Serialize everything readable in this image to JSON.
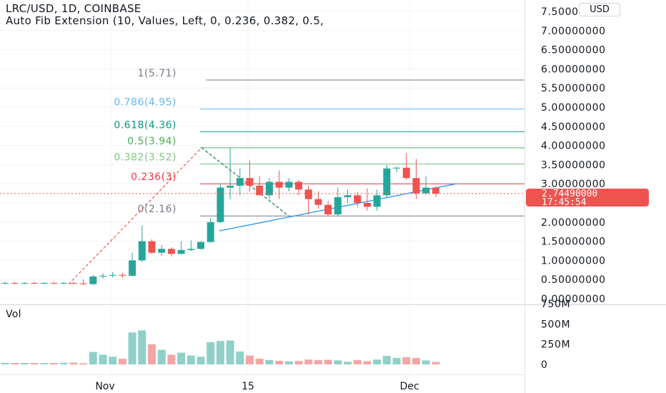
{
  "header": {
    "symbol_line": "LRC/USD, 1D, COINBASE",
    "indicator_line": "Auto Fib Extension (10, Values, Left, 0, 0.236, 0.382, 0.5,"
  },
  "currency_button": "USD",
  "price_axis": {
    "labels": [
      "7.50000000",
      "7.00000000",
      "6.50000000",
      "6.00000000",
      "5.50000000",
      "5.00000000",
      "4.50000000",
      "4.00000000",
      "3.50000000",
      "3.00000000",
      "2.50000000",
      "2.00000000",
      "1.50000000",
      "1.00000000",
      "0.50000000",
      "0.00000000"
    ],
    "values": [
      7.5,
      7.0,
      6.5,
      6.0,
      5.5,
      5.0,
      4.5,
      4.0,
      3.5,
      3.0,
      2.5,
      2.0,
      1.5,
      1.0,
      0.5,
      0.0
    ]
  },
  "current_price": {
    "value": "2.74490000",
    "countdown": "17:45:54",
    "color": "#ef5350"
  },
  "fib_levels": [
    {
      "label": "1(5.71)",
      "value": 5.71,
      "color": "#787b86"
    },
    {
      "label": "0.786(4.95)",
      "value": 4.95,
      "color": "#64b5f6"
    },
    {
      "label": "0.618(4.36)",
      "value": 4.36,
      "color": "#089981"
    },
    {
      "label": "0.5(3.94)",
      "value": 3.94,
      "color": "#4caf50"
    },
    {
      "label": "0.382(3.52)",
      "value": 3.52,
      "color": "#81c784"
    },
    {
      "label": "0.236(3)",
      "value": 3.0,
      "color": "#f23645"
    },
    {
      "label": "0(2.16)",
      "value": 2.16,
      "color": "#787b86"
    }
  ],
  "volume_pane": {
    "title": "Vol",
    "axis_labels": [
      "750M",
      "500M",
      "250M",
      "0"
    ],
    "axis_values": [
      750,
      500,
      250,
      0
    ]
  },
  "time_axis": {
    "labels": [
      "Nov",
      "15",
      "Dec"
    ]
  },
  "colors": {
    "up": "#26a69a",
    "down": "#ef5350",
    "up_vol": "#8fd1c9",
    "down_vol": "#f4a6a6",
    "trendline": "#2196f3"
  },
  "chart_data": {
    "type": "candlestick",
    "candles": [
      {
        "o": 0.4,
        "h": 0.44,
        "l": 0.38,
        "c": 0.41,
        "v": 20
      },
      {
        "o": 0.41,
        "h": 0.44,
        "l": 0.38,
        "c": 0.4,
        "v": 18
      },
      {
        "o": 0.4,
        "h": 0.43,
        "l": 0.38,
        "c": 0.41,
        "v": 17
      },
      {
        "o": 0.41,
        "h": 0.44,
        "l": 0.38,
        "c": 0.4,
        "v": 18
      },
      {
        "o": 0.4,
        "h": 0.43,
        "l": 0.38,
        "c": 0.41,
        "v": 16
      },
      {
        "o": 0.41,
        "h": 0.44,
        "l": 0.39,
        "c": 0.4,
        "v": 18
      },
      {
        "o": 0.4,
        "h": 0.43,
        "l": 0.38,
        "c": 0.41,
        "v": 20
      },
      {
        "o": 0.41,
        "h": 0.44,
        "l": 0.38,
        "c": 0.4,
        "v": 22
      },
      {
        "o": 0.4,
        "h": 0.5,
        "l": 0.36,
        "c": 0.38,
        "v": 15
      },
      {
        "o": 0.38,
        "h": 0.62,
        "l": 0.36,
        "c": 0.58,
        "v": 155
      },
      {
        "o": 0.58,
        "h": 0.66,
        "l": 0.52,
        "c": 0.6,
        "v": 120
      },
      {
        "o": 0.6,
        "h": 0.7,
        "l": 0.56,
        "c": 0.62,
        "v": 95
      },
      {
        "o": 0.62,
        "h": 0.68,
        "l": 0.55,
        "c": 0.6,
        "v": 70
      },
      {
        "o": 0.6,
        "h": 1.2,
        "l": 0.58,
        "c": 1.0,
        "v": 395
      },
      {
        "o": 1.0,
        "h": 1.92,
        "l": 0.96,
        "c": 1.5,
        "v": 420
      },
      {
        "o": 1.5,
        "h": 1.55,
        "l": 1.17,
        "c": 1.2,
        "v": 250
      },
      {
        "o": 1.2,
        "h": 1.4,
        "l": 1.12,
        "c": 1.3,
        "v": 180
      },
      {
        "o": 1.3,
        "h": 1.34,
        "l": 1.1,
        "c": 1.17,
        "v": 120
      },
      {
        "o": 1.17,
        "h": 1.5,
        "l": 1.15,
        "c": 1.27,
        "v": 145
      },
      {
        "o": 1.27,
        "h": 1.52,
        "l": 1.24,
        "c": 1.3,
        "v": 110
      },
      {
        "o": 1.3,
        "h": 1.5,
        "l": 1.28,
        "c": 1.48,
        "v": 95
      },
      {
        "o": 1.48,
        "h": 2.1,
        "l": 1.46,
        "c": 2.0,
        "v": 275
      },
      {
        "o": 2.0,
        "h": 3.0,
        "l": 1.98,
        "c": 2.9,
        "v": 290
      },
      {
        "o": 2.9,
        "h": 3.94,
        "l": 2.6,
        "c": 2.95,
        "v": 295
      },
      {
        "o": 2.95,
        "h": 3.4,
        "l": 2.7,
        "c": 3.15,
        "v": 160
      },
      {
        "o": 3.15,
        "h": 3.6,
        "l": 2.8,
        "c": 2.95,
        "v": 110
      },
      {
        "o": 2.95,
        "h": 3.2,
        "l": 2.72,
        "c": 2.7,
        "v": 70
      },
      {
        "o": 2.7,
        "h": 3.15,
        "l": 2.6,
        "c": 3.05,
        "v": 55
      },
      {
        "o": 3.05,
        "h": 3.35,
        "l": 2.6,
        "c": 2.9,
        "v": 45
      },
      {
        "o": 2.9,
        "h": 3.15,
        "l": 2.8,
        "c": 3.05,
        "v": 38
      },
      {
        "o": 3.05,
        "h": 3.1,
        "l": 2.7,
        "c": 2.85,
        "v": 42
      },
      {
        "o": 2.85,
        "h": 2.95,
        "l": 2.2,
        "c": 2.6,
        "v": 60
      },
      {
        "o": 2.6,
        "h": 2.8,
        "l": 2.35,
        "c": 2.45,
        "v": 55
      },
      {
        "o": 2.45,
        "h": 2.55,
        "l": 2.15,
        "c": 2.2,
        "v": 58
      },
      {
        "o": 2.2,
        "h": 2.9,
        "l": 2.15,
        "c": 2.65,
        "v": 50
      },
      {
        "o": 2.65,
        "h": 2.85,
        "l": 2.5,
        "c": 2.7,
        "v": 32
      },
      {
        "o": 2.7,
        "h": 2.78,
        "l": 2.38,
        "c": 2.5,
        "v": 55
      },
      {
        "o": 2.5,
        "h": 2.88,
        "l": 2.3,
        "c": 2.4,
        "v": 40
      },
      {
        "o": 2.4,
        "h": 2.85,
        "l": 2.3,
        "c": 2.7,
        "v": 60
      },
      {
        "o": 2.7,
        "h": 3.5,
        "l": 2.65,
        "c": 3.4,
        "v": 105
      },
      {
        "o": 3.4,
        "h": 3.45,
        "l": 3.3,
        "c": 3.42,
        "v": 80
      },
      {
        "o": 3.42,
        "h": 3.8,
        "l": 3.1,
        "c": 3.15,
        "v": 90
      },
      {
        "o": 3.15,
        "h": 3.65,
        "l": 2.6,
        "c": 2.75,
        "v": 80
      },
      {
        "o": 2.75,
        "h": 3.2,
        "l": 2.72,
        "c": 2.9,
        "v": 50
      },
      {
        "o": 2.9,
        "h": 2.93,
        "l": 2.66,
        "c": 2.74,
        "v": 30
      }
    ]
  }
}
